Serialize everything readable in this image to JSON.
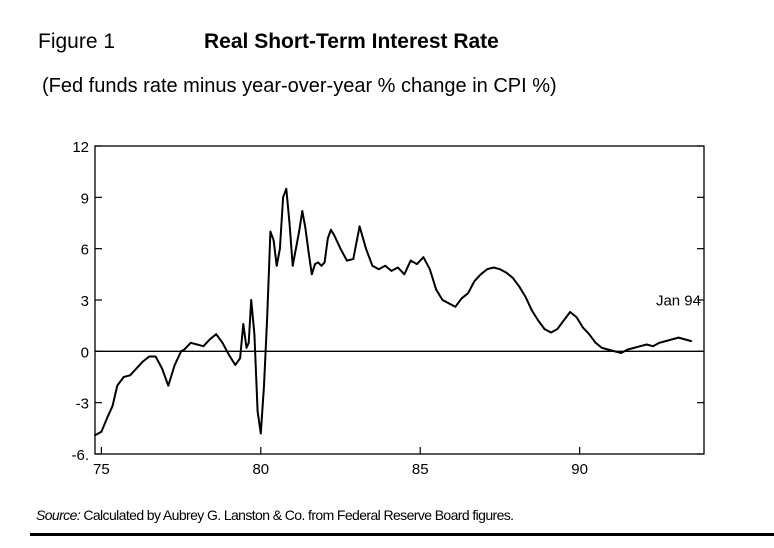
{
  "figure": {
    "label": "Figure 1",
    "title": "Real Short-Term Interest Rate",
    "subtitle": "(Fed funds rate minus year-over-year % change in CPI %)"
  },
  "source": {
    "lead": "Source:",
    "text": " Calculated by Aubrey G. Lanston & Co. from Federal Reserve Board figures."
  },
  "chart_data": {
    "type": "line",
    "title": "Real Short-Term Interest Rate",
    "subtitle": "(Fed funds rate minus year-over-year % change in CPI %)",
    "xlabel": "",
    "ylabel": "",
    "xlim": [
      1974.8,
      1993.9
    ],
    "ylim": [
      -6,
      12
    ],
    "xticks": [
      75,
      80,
      85,
      90
    ],
    "yticks": [
      12,
      9,
      6,
      3,
      0,
      -3,
      -6
    ],
    "ytick_labels": [
      "12",
      "9",
      "6",
      "3",
      "0",
      "-3",
      "-6."
    ],
    "grid": false,
    "zero_line": true,
    "annotation": {
      "text": "Jan 94",
      "x": 1993.1,
      "y": 2.1
    },
    "series": [
      {
        "x": [
          1974.8,
          1975.0,
          1975.2,
          1975.35,
          1975.5,
          1975.7,
          1975.9,
          1976.1,
          1976.3,
          1976.5,
          1976.7,
          1976.9,
          1977.1,
          1977.3,
          1977.5,
          1977.6,
          1977.8,
          1978.0,
          1978.2,
          1978.4,
          1978.6,
          1978.8,
          1979.0,
          1979.2,
          1979.35,
          1979.45,
          1979.55,
          1979.62,
          1979.7,
          1979.8,
          1979.9,
          1980.0,
          1980.1,
          1980.2,
          1980.3,
          1980.4,
          1980.5,
          1980.6,
          1980.7,
          1980.8,
          1980.9,
          1981.0,
          1981.1,
          1981.2,
          1981.3,
          1981.4,
          1981.5,
          1981.6,
          1981.7,
          1981.8,
          1981.9,
          1982.0,
          1982.1,
          1982.2,
          1982.3,
          1982.5,
          1982.7,
          1982.9,
          1983.1,
          1983.3,
          1983.5,
          1983.7,
          1983.9,
          1984.1,
          1984.3,
          1984.5,
          1984.7,
          1984.9,
          1985.1,
          1985.3,
          1985.5,
          1985.7,
          1985.9,
          1986.1,
          1986.3,
          1986.5,
          1986.7,
          1986.9,
          1987.1,
          1987.3,
          1987.5,
          1987.7,
          1987.9,
          1988.1,
          1988.3,
          1988.5,
          1988.7,
          1988.9,
          1989.1,
          1989.3,
          1989.5,
          1989.7,
          1989.9,
          1990.1,
          1990.3,
          1990.5,
          1990.7,
          1990.9,
          1991.1,
          1991.3,
          1991.5,
          1991.7,
          1991.9,
          1992.1,
          1992.3,
          1992.5,
          1992.7,
          1992.9,
          1993.1,
          1993.3,
          1993.5
        ],
        "values": [
          -4.9,
          -4.7,
          -3.8,
          -3.2,
          -2.0,
          -1.5,
          -1.4,
          -1.0,
          -0.6,
          -0.3,
          -0.3,
          -1.0,
          -2.0,
          -0.8,
          0.0,
          0.1,
          0.5,
          0.4,
          0.3,
          0.7,
          1.0,
          0.5,
          -0.2,
          -0.8,
          -0.4,
          1.6,
          0.2,
          0.5,
          3.0,
          1.0,
          -3.5,
          -4.8,
          -2.0,
          2.0,
          7.0,
          6.5,
          5.0,
          6.0,
          9.0,
          9.5,
          7.5,
          5.0,
          6.0,
          7.0,
          8.2,
          7.2,
          5.8,
          4.5,
          5.1,
          5.2,
          5.0,
          5.2,
          6.6,
          7.1,
          6.8,
          6.0,
          5.3,
          5.4,
          7.3,
          6.0,
          5.0,
          4.8,
          5.0,
          4.7,
          4.9,
          4.5,
          5.3,
          5.1,
          5.5,
          4.8,
          3.6,
          3.0,
          2.8,
          2.6,
          3.1,
          3.4,
          4.1,
          4.5,
          4.8,
          4.9,
          4.8,
          4.6,
          4.3,
          3.8,
          3.2,
          2.4,
          1.8,
          1.3,
          1.1,
          1.3,
          1.8,
          2.3,
          2.0,
          1.4,
          1.0,
          0.5,
          0.2,
          0.1,
          0.0,
          -0.1,
          0.1,
          0.2,
          0.3,
          0.4,
          0.3,
          0.5,
          0.6,
          0.7,
          0.8,
          0.7,
          0.6
        ]
      }
    ]
  }
}
